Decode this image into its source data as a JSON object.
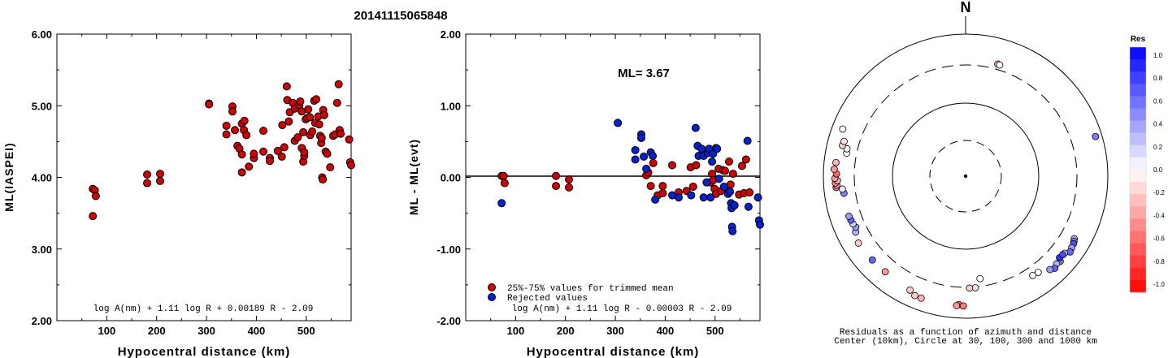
{
  "figure_title": "20141115065848",
  "chart_data": [
    {
      "type": "scatter",
      "ylabel": "ML(IASPEI)",
      "xlabel": "Hypocentral distance (km)",
      "xlim": [
        0,
        590
      ],
      "ylim": [
        2.0,
        6.0
      ],
      "xticks": [
        "100",
        "200",
        "300",
        "400",
        "500"
      ],
      "yticks": [
        "2.00",
        "3.00",
        "4.00",
        "5.00",
        "6.00"
      ],
      "formula": "log A(nm) + 1.11 log R + 0.00189 R - 2.09",
      "point_color": "#cc0000",
      "points": [
        [
          72,
          3.84
        ],
        [
          76,
          3.82
        ],
        [
          78,
          3.74
        ],
        [
          72,
          3.46
        ],
        [
          181,
          4.04
        ],
        [
          181,
          3.92
        ],
        [
          207,
          4.05
        ],
        [
          207,
          3.95
        ],
        [
          305,
          5.03
        ],
        [
          305,
          5.02
        ],
        [
          340,
          4.72
        ],
        [
          340,
          4.6
        ],
        [
          352,
          4.99
        ],
        [
          352,
          4.92
        ],
        [
          357,
          4.66
        ],
        [
          362,
          4.44
        ],
        [
          366,
          4.4
        ],
        [
          371,
          4.75
        ],
        [
          376,
          4.79
        ],
        [
          371,
          4.32
        ],
        [
          371,
          4.07
        ],
        [
          375,
          4.66
        ],
        [
          380,
          4.59
        ],
        [
          385,
          4.15
        ],
        [
          395,
          4.27
        ],
        [
          395,
          4.33
        ],
        [
          414,
          4.65
        ],
        [
          414,
          4.36
        ],
        [
          427,
          4.27
        ],
        [
          427,
          4.23
        ],
        [
          443,
          4.37
        ],
        [
          451,
          4.29
        ],
        [
          452,
          4.73
        ],
        [
          456,
          4.42
        ],
        [
          461,
          5.27
        ],
        [
          462,
          5.08
        ],
        [
          465,
          4.78
        ],
        [
          467,
          4.91
        ],
        [
          473,
          5.04
        ],
        [
          477,
          4.51
        ],
        [
          477,
          4.96
        ],
        [
          483,
          4.56
        ],
        [
          486,
          5.01
        ],
        [
          488,
          5.06
        ],
        [
          491,
          4.92
        ],
        [
          491,
          4.41
        ],
        [
          494,
          4.63
        ],
        [
          494,
          4.22
        ],
        [
          496,
          4.3
        ],
        [
          496,
          4.35
        ],
        [
          499,
          4.81
        ],
        [
          502,
          4.83
        ],
        [
          504,
          4.95
        ],
        [
          507,
          4.84
        ],
        [
          508,
          4.59
        ],
        [
          512,
          4.64
        ],
        [
          516,
          5.07
        ],
        [
          518,
          4.76
        ],
        [
          520,
          5.09
        ],
        [
          524,
          4.85
        ],
        [
          526,
          4.74
        ],
        [
          528,
          4.58
        ],
        [
          530,
          4.48
        ],
        [
          531,
          4.55
        ],
        [
          532,
          4.0
        ],
        [
          533,
          3.97
        ],
        [
          534,
          4.94
        ],
        [
          536,
          4.87
        ],
        [
          539,
          4.36
        ],
        [
          542,
          4.33
        ],
        [
          548,
          4.14
        ],
        [
          554,
          4.58
        ],
        [
          558,
          4.6
        ],
        [
          562,
          5.04
        ],
        [
          565,
          5.3
        ],
        [
          567,
          4.66
        ],
        [
          569,
          4.61
        ],
        [
          586,
          4.53
        ],
        [
          588,
          4.21
        ],
        [
          590,
          4.17
        ]
      ]
    },
    {
      "type": "scatter",
      "ylabel": "ML - ML(evt)",
      "xlabel": "Hypocentral distance (km)",
      "xlim": [
        0,
        590
      ],
      "ylim": [
        -2.0,
        2.0
      ],
      "xticks": [
        "100",
        "200",
        "300",
        "400",
        "500"
      ],
      "yticks": [
        "-2.00",
        "-1.00",
        "0.00",
        "1.00",
        "2.00"
      ],
      "annotation": "ML= 3.67",
      "formula": "log A(nm) + 1.11 log R - 0.00003 R - 2.09",
      "legend": [
        {
          "label": "25%-75% values for trimmed mean",
          "color": "#cc0000"
        },
        {
          "label": "Rejected values",
          "color": "#0022cc"
        }
      ],
      "series": [
        {
          "name": "25%-75% values for trimmed mean",
          "color": "#cc0000",
          "points": [
            [
              72,
              0.02
            ],
            [
              76,
              0.02
            ],
            [
              78,
              -0.08
            ],
            [
              181,
              0.02
            ],
            [
              181,
              -0.12
            ],
            [
              207,
              -0.03
            ],
            [
              207,
              -0.14
            ],
            [
              362,
              0.03
            ],
            [
              366,
              0.07
            ],
            [
              376,
              0.2
            ],
            [
              371,
              -0.12
            ],
            [
              385,
              -0.25
            ],
            [
              395,
              -0.12
            ],
            [
              395,
              -0.22
            ],
            [
              414,
              0.17
            ],
            [
              427,
              -0.21
            ],
            [
              443,
              -0.19
            ],
            [
              451,
              0.14
            ],
            [
              456,
              -0.13
            ],
            [
              462,
              0.17
            ],
            [
              491,
              -0.07
            ],
            [
              494,
              0.05
            ],
            [
              496,
              -0.04
            ],
            [
              499,
              -0.16
            ],
            [
              502,
              -0.23
            ],
            [
              507,
              0.12
            ],
            [
              512,
              -0.19
            ],
            [
              516,
              0.1
            ],
            [
              520,
              0.09
            ],
            [
              524,
              -0.14
            ],
            [
              528,
              0.22
            ],
            [
              531,
              -0.1
            ],
            [
              536,
              0.05
            ],
            [
              548,
              -0.24
            ],
            [
              554,
              0.16
            ],
            [
              558,
              -0.22
            ],
            [
              562,
              0.25
            ],
            [
              569,
              -0.21
            ]
          ]
        },
        {
          "name": "Rejected values",
          "color": "#0022cc",
          "points": [
            [
              72,
              -0.36
            ],
            [
              305,
              0.76
            ],
            [
              340,
              0.38
            ],
            [
              340,
              0.25
            ],
            [
              352,
              0.6
            ],
            [
              352,
              0.55
            ],
            [
              357,
              0.29
            ],
            [
              362,
              0.12
            ],
            [
              371,
              0.35
            ],
            [
              375,
              0.3
            ],
            [
              380,
              -0.31
            ],
            [
              414,
              -0.25
            ],
            [
              427,
              -0.28
            ],
            [
              452,
              -0.25
            ],
            [
              461,
              0.69
            ],
            [
              465,
              0.44
            ],
            [
              467,
              0.3
            ],
            [
              473,
              0.4
            ],
            [
              477,
              -0.28
            ],
            [
              477,
              0.3
            ],
            [
              483,
              -0.07
            ],
            [
              486,
              0.34
            ],
            [
              488,
              0.4
            ],
            [
              491,
              -0.28
            ],
            [
              494,
              0.22
            ],
            [
              496,
              0.33
            ],
            [
              502,
              0.41
            ],
            [
              504,
              0.4
            ],
            [
              508,
              -0.02
            ],
            [
              518,
              -0.13
            ],
            [
              532,
              -0.36
            ],
            [
              533,
              -0.43
            ],
            [
              539,
              -0.39
            ],
            [
              565,
              0.51
            ],
            [
              567,
              -0.41
            ],
            [
              526,
              -0.23
            ],
            [
              530,
              -0.2
            ],
            [
              534,
              -0.69
            ],
            [
              535,
              -0.75
            ],
            [
              586,
              -0.28
            ],
            [
              588,
              -0.6
            ],
            [
              590,
              -0.66
            ]
          ]
        }
      ]
    },
    {
      "type": "polar-scatter",
      "north_label": "N",
      "caption1": "Residuals as a function of azimuth and distance",
      "caption2": "Center (10km), Circle at 30, 100, 300 and 1000 km",
      "colorbar": {
        "title": "Res",
        "ticks": [
          "1.0",
          "0.8",
          "0.6",
          "0.4",
          "0.2",
          "0.0",
          "-0.2",
          "-0.4",
          "-0.6",
          "-0.8",
          "-1.0"
        ],
        "max_color": "#0000ff",
        "zero_color": "#ffffff",
        "min_color": "#ff0000"
      },
      "stations": [
        {
          "az": 16,
          "dist": 370,
          "res": -0.3
        },
        {
          "az": 17,
          "dist": 365,
          "res": 0.0
        },
        {
          "az": 73,
          "dist": 780,
          "res": 0.5
        },
        {
          "az": 120,
          "dist": 520,
          "res": 0.3
        },
        {
          "az": 121,
          "dist": 540,
          "res": 0.5
        },
        {
          "az": 122,
          "dist": 560,
          "res": 0.7
        },
        {
          "az": 124,
          "dist": 575,
          "res": 0.4
        },
        {
          "az": 126,
          "dist": 600,
          "res": 0.6
        },
        {
          "az": 128,
          "dist": 520,
          "res": 0.2
        },
        {
          "az": 132,
          "dist": 560,
          "res": 0.5
        },
        {
          "az": 134,
          "dist": 540,
          "res": 0.3
        },
        {
          "az": 136,
          "dist": 580,
          "res": 0.6
        },
        {
          "az": 138,
          "dist": 530,
          "res": 0.4
        },
        {
          "az": 131,
          "dist": 500,
          "res": 0.8
        },
        {
          "az": 129,
          "dist": 510,
          "res": 0.7
        },
        {
          "az": 143,
          "dist": 430,
          "res": 0.0
        },
        {
          "az": 146,
          "dist": 420,
          "res": 0.0
        },
        {
          "az": 172,
          "dist": 240,
          "res": 0.0
        },
        {
          "az": 175,
          "dist": 310,
          "res": -0.1
        },
        {
          "az": 178,
          "dist": 310,
          "res": -0.2
        },
        {
          "az": 183,
          "dist": 590,
          "res": -0.6
        },
        {
          "az": 181,
          "dist": 620,
          "res": -0.5
        },
        {
          "az": 184,
          "dist": 620,
          "res": -0.4
        },
        {
          "az": 200,
          "dist": 620,
          "res": -0.3
        },
        {
          "az": 203,
          "dist": 620,
          "res": -0.2
        },
        {
          "az": 206,
          "dist": 550,
          "res": -0.2
        },
        {
          "az": 220,
          "dist": 510,
          "res": -0.4
        },
        {
          "az": 228,
          "dist": 520,
          "res": 0.6
        },
        {
          "az": 238,
          "dist": 540,
          "res": -0.2
        },
        {
          "az": 243,
          "dist": 480,
          "res": 0.3
        },
        {
          "az": 245,
          "dist": 440,
          "res": 0.4
        },
        {
          "az": 247,
          "dist": 460,
          "res": 0.2
        },
        {
          "az": 249,
          "dist": 470,
          "res": 0.6
        },
        {
          "az": 251,
          "dist": 480,
          "res": 0.4
        },
        {
          "az": 262,
          "dist": 470,
          "res": 0.5
        },
        {
          "az": 264,
          "dist": 490,
          "res": 0.1
        },
        {
          "az": 265,
          "dist": 620,
          "res": -0.5
        },
        {
          "az": 266,
          "dist": 600,
          "res": -0.4
        },
        {
          "az": 267,
          "dist": 630,
          "res": -0.5
        },
        {
          "az": 268,
          "dist": 580,
          "res": -0.3
        },
        {
          "az": 269,
          "dist": 640,
          "res": -0.4
        },
        {
          "az": 271,
          "dist": 600,
          "res": -0.6
        },
        {
          "az": 273,
          "dist": 660,
          "res": -0.4
        },
        {
          "az": 276,
          "dist": 630,
          "res": -0.3
        },
        {
          "az": 281,
          "dist": 440,
          "res": 0.0
        },
        {
          "az": 283,
          "dist": 450,
          "res": 0.0
        },
        {
          "az": 284,
          "dist": 550,
          "res": -0.2
        },
        {
          "az": 286,
          "dist": 540,
          "res": -0.1
        },
        {
          "az": 291,
          "dist": 660,
          "res": 0.0
        }
      ]
    }
  ]
}
